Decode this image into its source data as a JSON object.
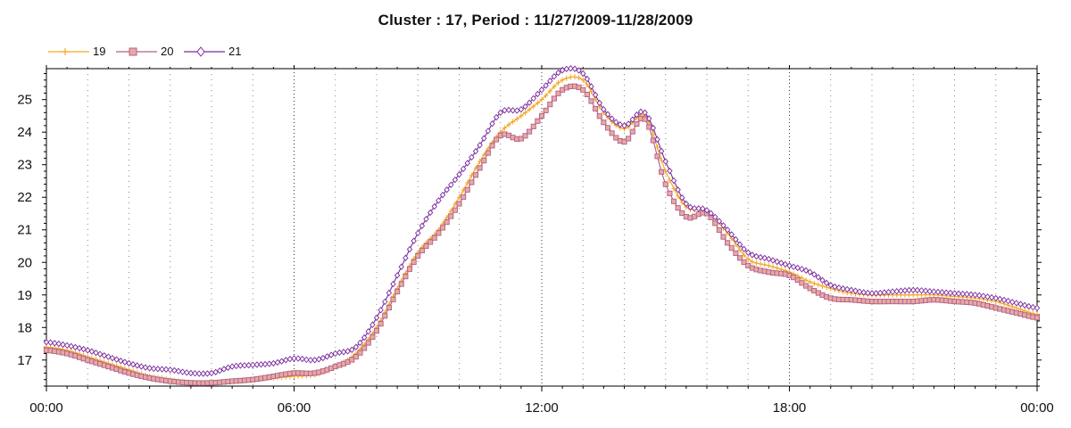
{
  "chart_data": {
    "type": "line",
    "title": "Cluster : 17, Period : 11/27/2009-11/28/2009",
    "xlabel": "",
    "ylabel": "",
    "x_ticks": [
      "00:00",
      "06:00",
      "12:00",
      "18:00",
      "00:00"
    ],
    "y_ticks": [
      "17",
      "18",
      "19",
      "20",
      "21",
      "22",
      "23",
      "24",
      "25"
    ],
    "ylim": [
      16.2,
      25.95
    ],
    "xlim_hours": [
      0,
      24
    ],
    "grid": true,
    "legend": "top-left",
    "x_hours": [
      0,
      0.5,
      1,
      1.5,
      2,
      2.5,
      3,
      3.5,
      4,
      4.5,
      5,
      5.5,
      6,
      6.5,
      7,
      7.5,
      8,
      8.5,
      9,
      9.5,
      10,
      10.5,
      11,
      11.5,
      12,
      12.5,
      13,
      13.5,
      14,
      14.5,
      15,
      15.5,
      16,
      16.5,
      17,
      17.5,
      18,
      18.5,
      19,
      19.5,
      20,
      20.5,
      21,
      21.5,
      22,
      22.5,
      23,
      23.5,
      24
    ],
    "series": [
      {
        "name": "19",
        "color": "#f5a623",
        "marker": "plus",
        "values": [
          17.4,
          17.3,
          17.1,
          16.9,
          16.7,
          16.5,
          16.4,
          16.3,
          16.3,
          16.35,
          16.4,
          16.45,
          16.5,
          16.55,
          16.8,
          17.2,
          18.0,
          19.2,
          20.3,
          21.0,
          22.0,
          23.1,
          24.0,
          24.5,
          25.0,
          25.6,
          25.6,
          24.6,
          24.1,
          24.5,
          22.8,
          21.7,
          21.6,
          20.9,
          20.1,
          19.9,
          19.7,
          19.4,
          19.2,
          19.05,
          19.0,
          19.0,
          19.0,
          19.0,
          18.95,
          18.9,
          18.8,
          18.6,
          18.4
        ]
      },
      {
        "name": "20",
        "color": "#b06080",
        "fill": "#e8a8a8",
        "marker": "square",
        "values": [
          17.3,
          17.2,
          17.0,
          16.8,
          16.6,
          16.45,
          16.35,
          16.3,
          16.3,
          16.35,
          16.4,
          16.5,
          16.6,
          16.6,
          16.8,
          17.1,
          17.9,
          19.1,
          20.2,
          20.9,
          21.8,
          22.9,
          23.9,
          23.8,
          24.5,
          25.3,
          25.3,
          24.3,
          23.7,
          24.4,
          22.4,
          21.4,
          21.5,
          20.6,
          19.9,
          19.7,
          19.6,
          19.2,
          18.9,
          18.85,
          18.8,
          18.8,
          18.8,
          18.85,
          18.8,
          18.75,
          18.6,
          18.45,
          18.3
        ]
      },
      {
        "name": "21",
        "color": "#7a2a9e",
        "marker": "diamond",
        "values": [
          17.55,
          17.45,
          17.3,
          17.1,
          16.9,
          16.75,
          16.7,
          16.6,
          16.6,
          16.8,
          16.85,
          16.9,
          17.05,
          17.0,
          17.2,
          17.4,
          18.3,
          19.6,
          20.9,
          21.9,
          22.7,
          23.6,
          24.6,
          24.7,
          25.3,
          25.9,
          25.8,
          24.7,
          24.2,
          24.6,
          23.1,
          21.8,
          21.6,
          21.0,
          20.3,
          20.1,
          19.9,
          19.7,
          19.3,
          19.15,
          19.05,
          19.1,
          19.15,
          19.1,
          19.05,
          19.0,
          18.9,
          18.75,
          18.6
        ]
      }
    ]
  }
}
